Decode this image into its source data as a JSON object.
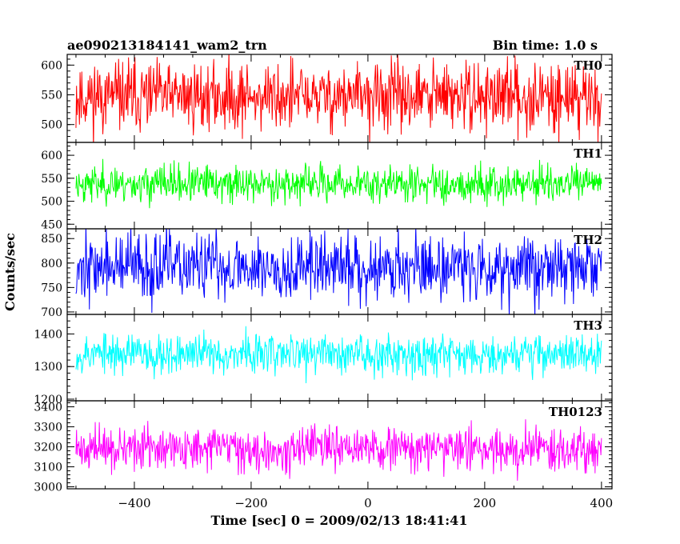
{
  "header": {
    "title": "ae090213184141_wam2_trn",
    "bin_time": "Bin time: 1.0 s"
  },
  "chart_data": {
    "type": "line",
    "title": "ae090213184141_wam2_trn",
    "xlabel": "Time [sec] 0 = 2009/02/13 18:41:41",
    "ylabel": "Counts/sec",
    "xlim": [
      -515,
      418
    ],
    "x_ticks": [
      -400,
      -200,
      0,
      200,
      400
    ],
    "x_range": [
      -500,
      400
    ],
    "bin_time_s": 1.0,
    "grid": false,
    "panels": [
      {
        "name": "TH0",
        "color": "#ff0000",
        "ylim": [
          470,
          618
        ],
        "y_ticks": [
          500,
          550,
          600
        ],
        "mean": 547,
        "noise": 32,
        "seed": 11
      },
      {
        "name": "TH1",
        "color": "#00ff00",
        "ylim": [
          440,
          628
        ],
        "y_ticks": [
          450,
          500,
          550,
          600
        ],
        "mean": 538,
        "noise": 22,
        "seed": 23
      },
      {
        "name": "TH2",
        "color": "#0000ff",
        "ylim": [
          695,
          870
        ],
        "y_ticks": [
          700,
          750,
          800,
          850
        ],
        "mean": 792,
        "noise": 38,
        "seed": 37
      },
      {
        "name": "TH3",
        "color": "#00ffff",
        "ylim": [
          1195,
          1460
        ],
        "y_ticks": [
          1200,
          1300,
          1400
        ],
        "mean": 1340,
        "noise": 34,
        "seed": 53
      },
      {
        "name": "TH0123",
        "color": "#ff00ff",
        "ylim": [
          2990,
          3430
        ],
        "y_ticks": [
          3000,
          3100,
          3200,
          3300,
          3400
        ],
        "mean": 3190,
        "noise": 58,
        "seed": 71
      }
    ]
  }
}
